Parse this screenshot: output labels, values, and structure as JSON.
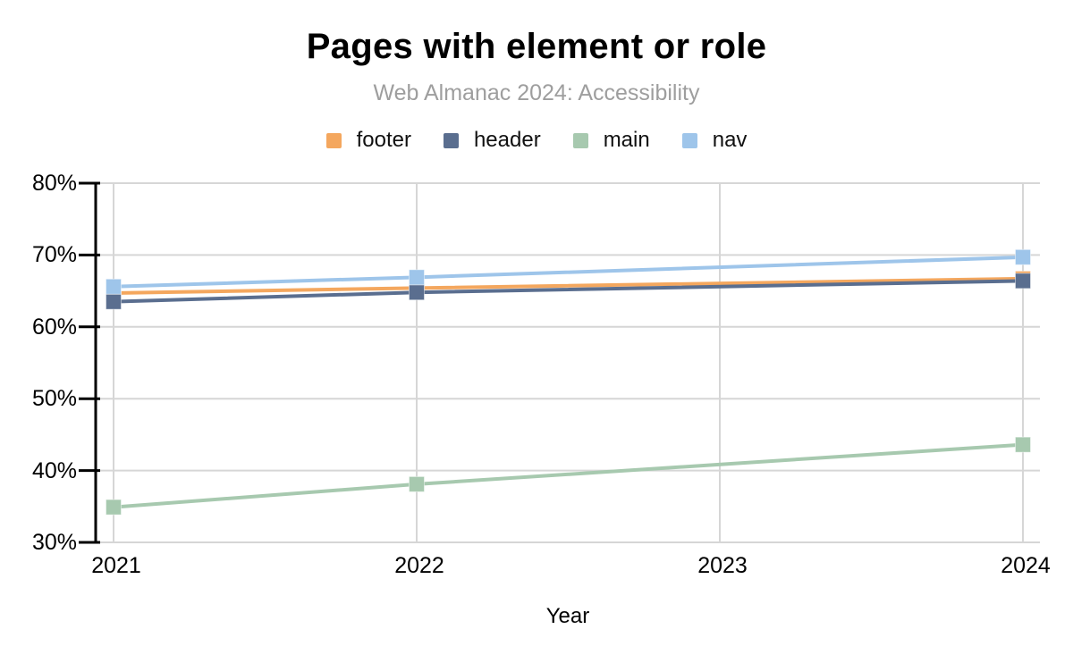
{
  "chart_data": {
    "type": "line",
    "title": "Pages with element or role",
    "subtitle": "Web Almanac 2024: Accessibility",
    "xlabel": "Year",
    "ylabel": "",
    "x_ticks": [
      2021,
      2022,
      2023,
      2024
    ],
    "x_tick_labels": [
      "2021",
      "2022",
      "2023",
      "2024"
    ],
    "ylim": [
      30,
      80
    ],
    "y_tick_values": [
      80,
      70,
      60,
      50,
      40,
      30
    ],
    "y_tick_labels": [
      "80%",
      "70%",
      "60%",
      "50%",
      "40%",
      "30%"
    ],
    "grid": true,
    "legend_position": "top",
    "marker": "square",
    "series": [
      {
        "name": "footer",
        "color": "#F4A75E",
        "x": [
          2021,
          2022,
          2024
        ],
        "values": [
          64.7,
          65.4,
          66.7
        ]
      },
      {
        "name": "header",
        "color": "#5A6E8F",
        "x": [
          2021,
          2022,
          2024
        ],
        "values": [
          63.5,
          64.8,
          66.4
        ]
      },
      {
        "name": "main",
        "color": "#A7C9AF",
        "x": [
          2021,
          2022,
          2024
        ],
        "values": [
          34.9,
          38.1,
          43.6
        ]
      },
      {
        "name": "nav",
        "color": "#9EC5EA",
        "x": [
          2021,
          2022,
          2024
        ],
        "values": [
          65.6,
          66.9,
          69.7
        ]
      }
    ],
    "colors": {
      "grid": "#D6D6D6",
      "axis": "#000000",
      "subtitle_text": "#9E9E9E"
    }
  }
}
